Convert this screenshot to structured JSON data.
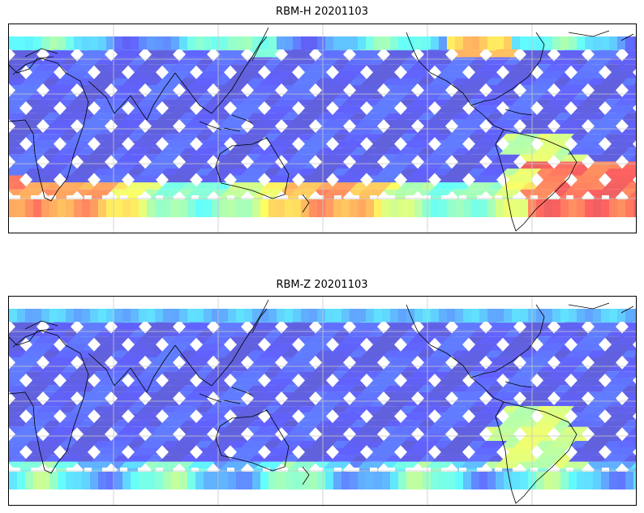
{
  "figure": {
    "panels": [
      {
        "title": "RBM-H 20201103",
        "variable": "RBM-H",
        "date": "20201103"
      },
      {
        "title": "RBM-Z 20201103",
        "variable": "RBM-Z",
        "date": "20201103"
      }
    ]
  },
  "map": {
    "projection": "PlateCarree, central longitude ~180",
    "gridlines": true,
    "coastlines": true,
    "colormap": "jet",
    "colors": {
      "coast": "#000000",
      "grid": "#c8c8c8",
      "frame": "#000000"
    }
  }
}
